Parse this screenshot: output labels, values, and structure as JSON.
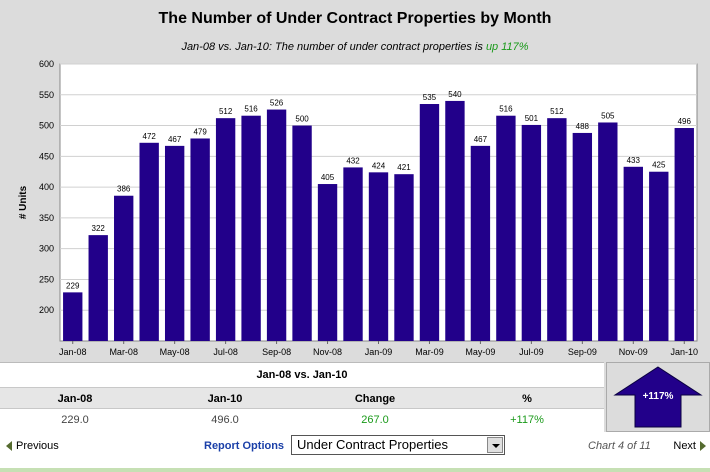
{
  "header": {
    "title": "The Number of Under Contract Properties by Month",
    "subtitle_prefix": "Jan-08 vs. Jan-10: The number of under contract properties is ",
    "subtitle_highlight": "up 117%"
  },
  "chart_data": {
    "type": "bar",
    "ylabel": "# Units",
    "ylim": [
      150,
      600
    ],
    "yticks": [
      200,
      250,
      300,
      350,
      400,
      450,
      500,
      550,
      600
    ],
    "grid": true,
    "bar_color": "#22008a",
    "categories": [
      "Jan-08",
      "Feb-08",
      "Mar-08",
      "Apr-08",
      "May-08",
      "Jun-08",
      "Jul-08",
      "Aug-08",
      "Sep-08",
      "Oct-08",
      "Nov-08",
      "Dec-08",
      "Jan-09",
      "Feb-09",
      "Mar-09",
      "Apr-09",
      "May-09",
      "Jun-09",
      "Jul-09",
      "Aug-09",
      "Sep-09",
      "Oct-09",
      "Nov-09",
      "Dec-09",
      "Jan-10"
    ],
    "values": [
      229,
      322,
      386,
      472,
      467,
      479,
      512,
      516,
      526,
      500,
      405,
      432,
      424,
      421,
      535,
      540,
      467,
      516,
      501,
      512,
      488,
      505,
      433,
      425,
      496
    ],
    "shown_xlabels": [
      "Jan-08",
      "",
      "Mar-08",
      "",
      "May-08",
      "",
      "Jul-08",
      "",
      "Sep-08",
      "",
      "Nov-08",
      "",
      "Jan-09",
      "",
      "Mar-09",
      "",
      "May-09",
      "",
      "Jul-09",
      "",
      "Sep-09",
      "",
      "Nov-09",
      "",
      "Jan-10"
    ]
  },
  "summary": {
    "title": "Jan-08 vs. Jan-10",
    "headers": [
      "Jan-08",
      "Jan-10",
      "Change",
      "%"
    ],
    "values": [
      "229.0",
      "496.0",
      "267.0",
      "+117%"
    ]
  },
  "indicator": {
    "label": "+117%",
    "color": "#22008a"
  },
  "nav": {
    "previous_label": "Previous",
    "next_label": "Next",
    "report_options_label": "Report Options",
    "selected_report": "Under Contract Properties",
    "chart_count": "Chart 4 of 11"
  },
  "colors": {
    "positive": "#1a9a1a",
    "link": "#1a3fa8"
  }
}
